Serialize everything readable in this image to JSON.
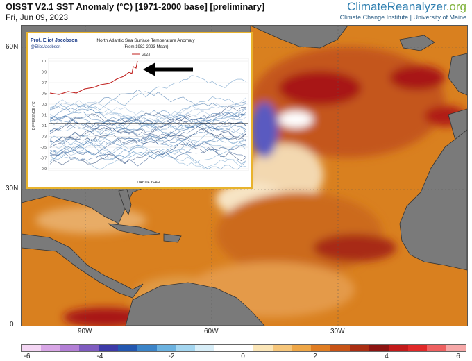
{
  "header": {
    "title": "OISST V2.1 SST Anomaly (°C) [1971-2000 base] [preliminary]",
    "date": "Fri, Jun 09, 2023"
  },
  "brand": {
    "name": "ClimateReanalyzer",
    "suffix": ".org",
    "subtitle": "Climate Change Institute | University of Maine"
  },
  "map": {
    "lat_labels": [
      "60N",
      "30N",
      "0"
    ],
    "lon_labels": [
      "90W",
      "60W",
      "30W"
    ],
    "colors": {
      "land": "#7a7a7a",
      "ocean_warm": "#d9801f",
      "ocean_hot": "#a81814"
    }
  },
  "inset": {
    "author": "Prof. Eliot Jacobson",
    "handle": "@EliotJacobson",
    "title_line1": "North Atlantic Sea Surface Temperature Anomaly",
    "title_line2": "(From 1982-2023 Mean)",
    "legend_label": "2023",
    "ylabel": "DIFFERENCE (°C)",
    "xlabel": "DAY OF YEAR",
    "y_ticks": [
      "1.1",
      "0.9",
      "0.7",
      "0.5",
      "0.3",
      "0.1",
      "-0.1",
      "-0.3",
      "-0.5",
      "-0.7",
      "-0.9"
    ]
  },
  "colorbar": {
    "ticks": [
      "-6",
      "-4",
      "-2",
      "0",
      "2",
      "4",
      "6"
    ],
    "colors": [
      "#f4d6f4",
      "#d8a6e6",
      "#b37fd6",
      "#7f5cc0",
      "#3d3aa8",
      "#2357b0",
      "#3b84c8",
      "#6bb2e0",
      "#a4d6f0",
      "#d8eef8",
      "#ffffff",
      "#ffffff",
      "#fbe6b8",
      "#f6c67a",
      "#eea646",
      "#e07d22",
      "#c85316",
      "#aa2e12",
      "#8c1411",
      "#c21a1a",
      "#e02828",
      "#ee6060",
      "#f6a8a8"
    ]
  }
}
